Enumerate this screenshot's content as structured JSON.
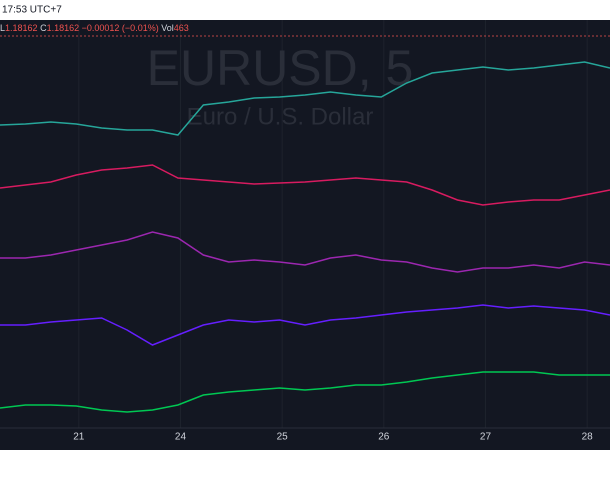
{
  "header": {
    "time": "17:53 UTC+7"
  },
  "legend": {
    "low_label": "L",
    "low": "1.18162",
    "close_label": "C",
    "close": "1.18162",
    "change": "−0.00012 (−0.01%)",
    "vol_label": "Vol",
    "vol": "463"
  },
  "watermark": {
    "symbol": "EURUSD, 5",
    "description": "Euro / U.S. Dollar"
  },
  "chart_data": {
    "type": "line",
    "x": [
      0,
      1,
      2,
      3,
      4,
      5,
      6,
      7,
      8,
      9,
      10,
      11,
      12,
      13,
      14,
      15,
      16,
      17,
      18,
      19,
      20,
      21,
      22,
      23,
      24
    ],
    "xlim": [
      0,
      24
    ],
    "xticks": [
      {
        "value": 3.1,
        "label": "21"
      },
      {
        "value": 7.1,
        "label": "24"
      },
      {
        "value": 11.1,
        "label": "25"
      },
      {
        "value": 15.1,
        "label": "26"
      },
      {
        "value": 19.1,
        "label": "27"
      },
      {
        "value": 23.1,
        "label": "28"
      }
    ],
    "ylim": [
      0,
      408
    ],
    "grid": true,
    "series": [
      {
        "color": "#26a69a",
        "values": [
          303,
          304,
          306,
          304,
          300,
          298,
          298,
          293,
          323,
          326,
          330,
          331,
          333,
          336,
          333,
          331,
          345,
          355,
          358,
          361,
          358,
          360,
          363,
          366,
          360
        ]
      },
      {
        "color": "#d81b60",
        "values": [
          240,
          243,
          246,
          253,
          258,
          260,
          263,
          250,
          248,
          246,
          244,
          245,
          246,
          248,
          250,
          248,
          246,
          238,
          228,
          223,
          226,
          228,
          228,
          233,
          238
        ]
      },
      {
        "color": "#9c27b0",
        "values": [
          170,
          170,
          173,
          178,
          183,
          188,
          196,
          190,
          173,
          166,
          168,
          166,
          163,
          170,
          173,
          168,
          166,
          160,
          156,
          160,
          160,
          163,
          160,
          166,
          163
        ]
      },
      {
        "color": "#651fff",
        "values": [
          103,
          103,
          106,
          108,
          110,
          98,
          83,
          93,
          103,
          108,
          106,
          108,
          103,
          108,
          110,
          113,
          116,
          118,
          120,
          123,
          120,
          122,
          120,
          118,
          113
        ]
      },
      {
        "color": "#00c853",
        "values": [
          20,
          23,
          23,
          22,
          18,
          16,
          18,
          23,
          33,
          36,
          38,
          40,
          38,
          40,
          43,
          43,
          46,
          50,
          53,
          56,
          56,
          56,
          53,
          53,
          53
        ]
      }
    ]
  }
}
